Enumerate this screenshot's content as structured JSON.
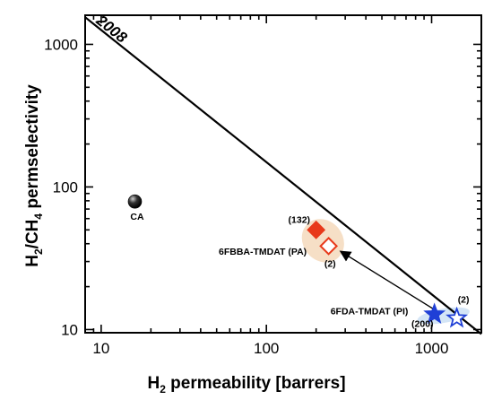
{
  "chart_data": {
    "type": "scatter",
    "title": "",
    "xlabel": {
      "prefix": "H",
      "sub": "2",
      "rest": " permeability [barrers]"
    },
    "ylabel": {
      "p1": "H",
      "s1": "2",
      "p2": "/CH",
      "s2": "4",
      "rest": " permselectivity"
    },
    "xscale": "log",
    "yscale": "log",
    "xlim": [
      8,
      2000
    ],
    "ylim": [
      9.5,
      1600
    ],
    "xticks": [
      10,
      100,
      1000
    ],
    "xtick_labels": [
      "10",
      "100",
      "1000"
    ],
    "yticks": [
      10,
      100,
      1000
    ],
    "ytick_labels": [
      "10",
      "100",
      "1000"
    ],
    "grid": false,
    "legend": "none",
    "upper_bound": {
      "label": "2008",
      "x": [
        8,
        2000
      ],
      "y": [
        1550,
        9.3
      ],
      "color": "#000000"
    },
    "regions": [
      {
        "group": "PA",
        "color": "#f5dcc0",
        "cx": 220,
        "cy": 42,
        "rx_log": 0.12,
        "ry_log": 0.16,
        "angle": -40
      },
      {
        "group": "PI",
        "color": "#cfe2f5",
        "cx": 1180,
        "cy": 12.5,
        "rx_log": 0.16,
        "ry_log": 0.05,
        "angle": -10
      }
    ],
    "series": [
      {
        "name": "CA",
        "marker": "sphere",
        "color": "#000000",
        "points": [
          {
            "x": 16,
            "y": 79
          }
        ]
      },
      {
        "name": "6FBBA-TMDAT (PA)",
        "marker": "diamond",
        "color": "#e8391a",
        "points": [
          {
            "x": 200,
            "y": 50,
            "filled": true,
            "note": "(132)"
          },
          {
            "x": 238,
            "y": 38.5,
            "filled": false,
            "note": "(2)"
          }
        ]
      },
      {
        "name": "6FDA-TMDAT (PI)",
        "marker": "star",
        "color": "#1f3fd6",
        "points": [
          {
            "x": 1040,
            "y": 12.8,
            "filled": true,
            "note": "(200)"
          },
          {
            "x": 1420,
            "y": 12,
            "filled": false,
            "note": "(2)"
          }
        ]
      }
    ],
    "labels": [
      {
        "text": "CA",
        "x": 16.5,
        "y": 59,
        "color": "#000000"
      },
      {
        "text": "6FBBA-TMDAT (PA)",
        "x": 95,
        "y": 33.5,
        "color": "#e8391a"
      },
      {
        "text": "6FDA-TMDAT (PI)",
        "x": 420,
        "y": 12.8,
        "color": "#1f3fd6"
      },
      {
        "text": "(132)",
        "x": 158,
        "y": 56,
        "color": "#000000"
      },
      {
        "text": "(2)",
        "x": 243,
        "y": 27.5,
        "color": "#000000"
      },
      {
        "text": "(200)",
        "x": 880,
        "y": 10.4,
        "color": "#000000"
      },
      {
        "text": "(2)",
        "x": 1560,
        "y": 15.4,
        "color": "#000000"
      }
    ],
    "arrows": [
      {
        "from": {
          "x": 1040,
          "y": 13.8
        },
        "to": {
          "x": 285,
          "y": 35
        }
      }
    ]
  }
}
